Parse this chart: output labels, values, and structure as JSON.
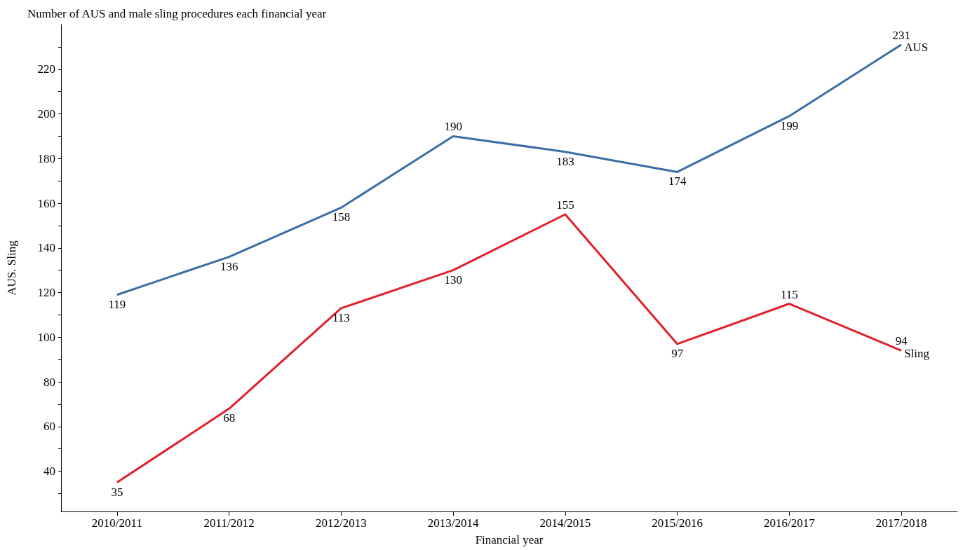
{
  "chart_data": {
    "type": "line",
    "title": "Number of AUS and male sling procedures each financial year",
    "xlabel": "Financial year",
    "ylabel": "AUS. Sling",
    "categories": [
      "2010/2011",
      "2011/2012",
      "2012/2013",
      "2013/2014",
      "2014/2015",
      "2015/2016",
      "2016/2017",
      "2017/2018"
    ],
    "series": [
      {
        "name": "AUS",
        "color": "#3a6ea5",
        "values": [
          119,
          136,
          158,
          190,
          183,
          174,
          199,
          231
        ]
      },
      {
        "name": "Sling",
        "color": "#e0202a",
        "values": [
          35,
          68,
          113,
          130,
          155,
          97,
          115,
          94
        ]
      }
    ],
    "ylim": [
      22,
      240
    ],
    "yticks": [
      {
        "value": 30,
        "label": null
      },
      40,
      {
        "value": 50,
        "label": null
      },
      60,
      {
        "value": 70,
        "label": null
      },
      80,
      {
        "value": 90,
        "label": null
      },
      100,
      {
        "value": 110,
        "label": null
      },
      120,
      {
        "value": 130,
        "label": null
      },
      140,
      {
        "value": 150,
        "label": null
      },
      160,
      {
        "value": 170,
        "label": null
      },
      180,
      {
        "value": 190,
        "label": null
      },
      200,
      {
        "value": 210,
        "label": null
      },
      220,
      {
        "value": 230,
        "label": null
      }
    ],
    "data_labels": true,
    "grid": false,
    "legend": false,
    "marker": "none",
    "line_style": "solid"
  }
}
